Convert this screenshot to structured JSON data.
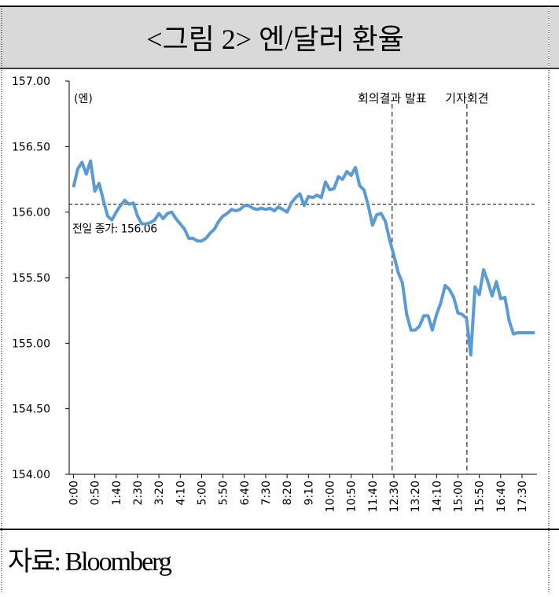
{
  "header": {
    "title": "<그림 2> 엔/달러 환율"
  },
  "chart_data": {
    "type": "line",
    "unit_label": "(엔)",
    "x": [
      0,
      10,
      20,
      30,
      40,
      50,
      60,
      70,
      80,
      90,
      100,
      110,
      120,
      130,
      140,
      150,
      160,
      170,
      180,
      190,
      200,
      210,
      220,
      230,
      240,
      250,
      260,
      270,
      280,
      290,
      300,
      310,
      320,
      330,
      340,
      350,
      360,
      370,
      380,
      390,
      400,
      410,
      420,
      430,
      440,
      450,
      460,
      470,
      480,
      490,
      500,
      510,
      520,
      530,
      540,
      550,
      560,
      570,
      580,
      590,
      600,
      610,
      620,
      630,
      640,
      650,
      660,
      670,
      680,
      690,
      700,
      710,
      720,
      730,
      740,
      750,
      760,
      770,
      780,
      790,
      800,
      810,
      820,
      830,
      840,
      850,
      860,
      870,
      880,
      890,
      900,
      910,
      920,
      930,
      940,
      950,
      960,
      970,
      980,
      990,
      1000,
      1010,
      1020,
      1030,
      1040,
      1050,
      1060,
      1070,
      1080
    ],
    "series": [
      {
        "name": "엔/달러 환율",
        "color": "#5b9bd5",
        "values": [
          156.19,
          156.33,
          156.38,
          156.29,
          156.39,
          156.16,
          156.22,
          156.09,
          155.97,
          155.94,
          156.0,
          156.05,
          156.09,
          156.06,
          156.07,
          155.97,
          155.91,
          155.91,
          155.92,
          155.94,
          155.99,
          155.95,
          155.99,
          156.0,
          155.95,
          155.91,
          155.87,
          155.8,
          155.8,
          155.78,
          155.78,
          155.8,
          155.84,
          155.87,
          155.93,
          155.97,
          155.99,
          156.02,
          156.01,
          156.02,
          156.05,
          156.05,
          156.03,
          156.02,
          156.03,
          156.02,
          156.03,
          156.01,
          156.04,
          156.02,
          156.0,
          156.07,
          156.11,
          156.14,
          156.05,
          156.12,
          156.11,
          156.13,
          156.11,
          156.23,
          156.17,
          156.18,
          156.27,
          156.25,
          156.31,
          156.28,
          156.34,
          156.2,
          156.17,
          156.05,
          155.9,
          155.98,
          155.99,
          155.93,
          155.79,
          155.67,
          155.54,
          155.46,
          155.22,
          155.1,
          155.1,
          155.13,
          155.21,
          155.21,
          155.1,
          155.22,
          155.31,
          155.44,
          155.41,
          155.35,
          155.23,
          155.22,
          155.19,
          154.91,
          155.43,
          155.37,
          155.56,
          155.47,
          155.36,
          155.47,
          155.34,
          155.35,
          155.17,
          155.07,
          155.08,
          155.08,
          155.08,
          155.08,
          155.08
        ]
      }
    ],
    "xlim": [
      -10,
      1085
    ],
    "xticks": [
      {
        "value": 0,
        "label": "0:00"
      },
      {
        "value": 50,
        "label": "0:50"
      },
      {
        "value": 100,
        "label": "1:40"
      },
      {
        "value": 150,
        "label": "2:30"
      },
      {
        "value": 200,
        "label": "3:20"
      },
      {
        "value": 250,
        "label": "4:10"
      },
      {
        "value": 300,
        "label": "5:00"
      },
      {
        "value": 350,
        "label": "5:50"
      },
      {
        "value": 400,
        "label": "6:40"
      },
      {
        "value": 450,
        "label": "7:30"
      },
      {
        "value": 500,
        "label": "8:20"
      },
      {
        "value": 550,
        "label": "9:10"
      },
      {
        "value": 600,
        "label": "10:00"
      },
      {
        "value": 650,
        "label": "10:50"
      },
      {
        "value": 700,
        "label": "11:40"
      },
      {
        "value": 750,
        "label": "12:30"
      },
      {
        "value": 800,
        "label": "13:20"
      },
      {
        "value": 850,
        "label": "14:10"
      },
      {
        "value": 900,
        "label": "15:00"
      },
      {
        "value": 950,
        "label": "15:50"
      },
      {
        "value": 1000,
        "label": "16:40"
      },
      {
        "value": 1050,
        "label": "17:30"
      }
    ],
    "ylim": [
      154,
      157
    ],
    "yticks": [
      {
        "value": 154,
        "label": "154.00"
      },
      {
        "value": 154.5,
        "label": "154.50"
      },
      {
        "value": 155,
        "label": "155.00"
      },
      {
        "value": 155.5,
        "label": "155.50"
      },
      {
        "value": 156,
        "label": "156.00"
      },
      {
        "value": 156.5,
        "label": "156.50"
      },
      {
        "value": 157,
        "label": "157.00"
      }
    ],
    "hline": {
      "value": 156.06,
      "label": "전일 종가: 156.06"
    },
    "vlines": [
      {
        "x": 746,
        "label": "회의결과 발표"
      },
      {
        "x": 921,
        "label": "기자회견"
      }
    ]
  },
  "footer": {
    "source": "자료: Bloomberg"
  }
}
